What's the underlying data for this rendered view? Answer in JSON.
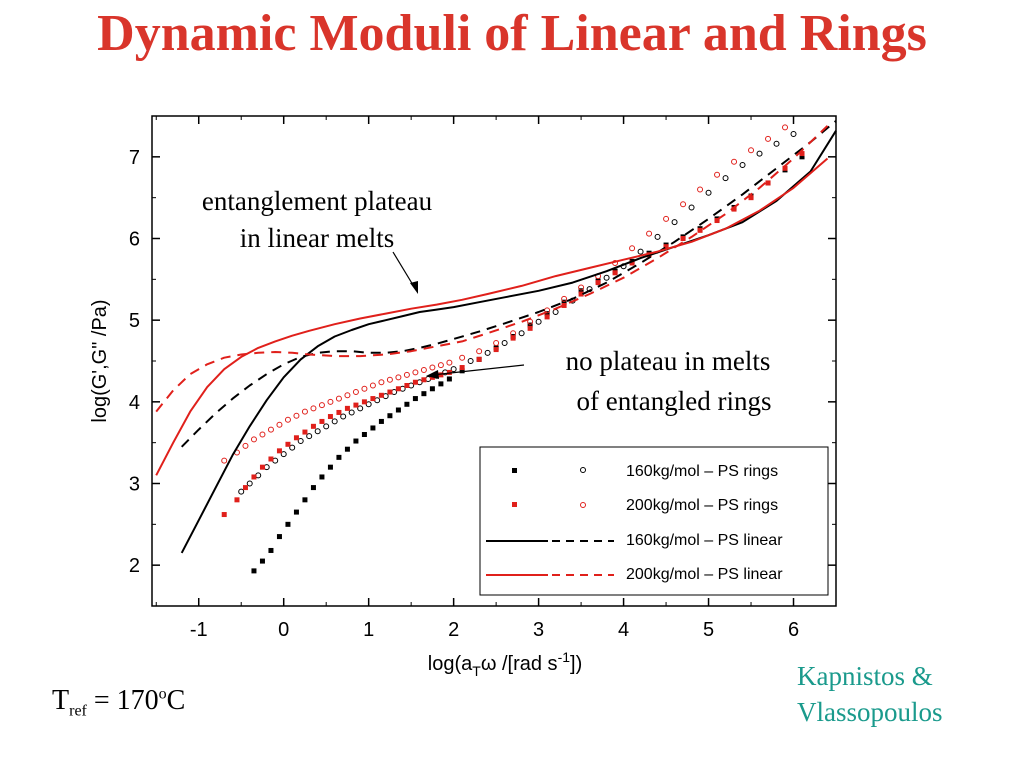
{
  "slide": {
    "title": "Dynamic Moduli of Linear and Rings",
    "tref": {
      "base": "T",
      "sub": "ref",
      "eq": " = 170",
      "sup": "o",
      "unit": "C"
    },
    "credit": [
      "Kapnistos &",
      "Vlassopoulos"
    ]
  },
  "annotations": {
    "plateau": [
      "entanglement plateau",
      "in linear melts"
    ],
    "noplateau": [
      "no plateau in melts",
      "of entangled rings"
    ]
  },
  "colors": {
    "title": "#d9352b",
    "credit": "#1a9a8c",
    "series160": "#000000",
    "series200": "#e0201b"
  },
  "chart_data": {
    "type": "scatter",
    "xlabel": "log(aTω /[rad s-1])",
    "ylabel": "log(G',G\" /Pa)",
    "xlim": [
      -1.55,
      6.5
    ],
    "ylim": [
      1.5,
      7.5
    ],
    "xticks": [
      "-1",
      "0",
      "1",
      "2",
      "3",
      "4",
      "5",
      "6"
    ],
    "yticks": [
      "2",
      "3",
      "4",
      "5",
      "6",
      "7"
    ],
    "grid": false,
    "legend": {
      "position": "bottom-right",
      "entries": [
        "160kg/mol – PS rings",
        "200kg/mol – PS rings",
        "160kg/mol – PS linear",
        "200kg/mol – PS linear"
      ]
    },
    "series": [
      {
        "name": "160kg/mol – PS rings",
        "modulus": "G'",
        "marker": "filled-square",
        "color": "#000000",
        "x": [
          -0.35,
          -0.25,
          -0.15,
          -0.05,
          0.05,
          0.15,
          0.25,
          0.35,
          0.45,
          0.55,
          0.65,
          0.75,
          0.85,
          0.95,
          1.05,
          1.15,
          1.25,
          1.35,
          1.45,
          1.55,
          1.65,
          1.75,
          1.85,
          1.95,
          2.1,
          2.3,
          2.5,
          2.7,
          2.9,
          3.1,
          3.3,
          3.5,
          3.7,
          3.9,
          4.1,
          4.3,
          4.5,
          4.7,
          4.9,
          5.1,
          5.3,
          5.5,
          5.7,
          5.9,
          6.1
        ],
        "y": [
          1.93,
          2.05,
          2.18,
          2.35,
          2.5,
          2.65,
          2.8,
          2.95,
          3.08,
          3.2,
          3.32,
          3.42,
          3.52,
          3.6,
          3.68,
          3.76,
          3.83,
          3.9,
          3.97,
          4.04,
          4.1,
          4.16,
          4.22,
          4.28,
          4.38,
          4.52,
          4.66,
          4.8,
          4.94,
          5.08,
          5.22,
          5.36,
          5.48,
          5.6,
          5.72,
          5.82,
          5.92,
          6.02,
          6.12,
          6.24,
          6.38,
          6.52,
          6.68,
          6.84,
          7.0
        ]
      },
      {
        "name": "160kg/mol – PS rings",
        "modulus": "G\"",
        "marker": "open-circle",
        "color": "#000000",
        "x": [
          -0.5,
          -0.4,
          -0.3,
          -0.2,
          -0.1,
          0,
          0.1,
          0.2,
          0.3,
          0.4,
          0.5,
          0.6,
          0.7,
          0.8,
          0.9,
          1,
          1.1,
          1.2,
          1.3,
          1.4,
          1.5,
          1.6,
          1.7,
          1.8,
          1.9,
          2.0,
          2.2,
          2.4,
          2.6,
          2.8,
          3.0,
          3.2,
          3.4,
          3.6,
          3.8,
          4.0,
          4.2,
          4.4,
          4.6,
          4.8,
          5.0,
          5.2,
          5.4,
          5.6,
          5.8,
          6.0
        ],
        "y": [
          2.9,
          3.0,
          3.1,
          3.2,
          3.28,
          3.36,
          3.44,
          3.52,
          3.58,
          3.64,
          3.7,
          3.76,
          3.82,
          3.87,
          3.92,
          3.97,
          4.02,
          4.07,
          4.12,
          4.16,
          4.2,
          4.24,
          4.28,
          4.32,
          4.36,
          4.4,
          4.5,
          4.6,
          4.72,
          4.84,
          4.98,
          5.1,
          5.24,
          5.38,
          5.52,
          5.66,
          5.84,
          6.02,
          6.2,
          6.38,
          6.56,
          6.74,
          6.9,
          7.04,
          7.16,
          7.28
        ]
      },
      {
        "name": "200kg/mol – PS rings",
        "modulus": "G'",
        "marker": "filled-square",
        "color": "#e0201b",
        "x": [
          -0.7,
          -0.55,
          -0.45,
          -0.35,
          -0.25,
          -0.15,
          -0.05,
          0.05,
          0.15,
          0.25,
          0.35,
          0.45,
          0.55,
          0.65,
          0.75,
          0.85,
          0.95,
          1.05,
          1.15,
          1.25,
          1.35,
          1.45,
          1.55,
          1.65,
          1.75,
          1.85,
          1.95,
          2.1,
          2.3,
          2.5,
          2.7,
          2.9,
          3.1,
          3.3,
          3.5,
          3.7,
          3.9,
          4.1,
          4.3,
          4.5,
          4.7,
          4.9,
          5.1,
          5.3,
          5.5,
          5.7,
          5.9,
          6.1
        ],
        "y": [
          2.62,
          2.8,
          2.95,
          3.08,
          3.2,
          3.3,
          3.4,
          3.48,
          3.56,
          3.63,
          3.7,
          3.76,
          3.82,
          3.87,
          3.92,
          3.96,
          4.0,
          4.04,
          4.08,
          4.12,
          4.16,
          4.2,
          4.24,
          4.27,
          4.3,
          4.33,
          4.36,
          4.42,
          4.52,
          4.64,
          4.78,
          4.9,
          5.04,
          5.18,
          5.32,
          5.46,
          5.58,
          5.7,
          5.8,
          5.9,
          6.0,
          6.1,
          6.22,
          6.36,
          6.5,
          6.68,
          6.86,
          7.04
        ]
      },
      {
        "name": "200kg/mol – PS rings",
        "modulus": "G\"",
        "marker": "open-circle",
        "color": "#e0201b",
        "x": [
          -0.7,
          -0.55,
          -0.45,
          -0.35,
          -0.25,
          -0.15,
          -0.05,
          0.05,
          0.15,
          0.25,
          0.35,
          0.45,
          0.55,
          0.65,
          0.75,
          0.85,
          0.95,
          1.05,
          1.15,
          1.25,
          1.35,
          1.45,
          1.55,
          1.65,
          1.75,
          1.85,
          1.95,
          2.1,
          2.3,
          2.5,
          2.7,
          2.9,
          3.1,
          3.3,
          3.5,
          3.7,
          3.9,
          4.1,
          4.3,
          4.5,
          4.7,
          4.9,
          5.1,
          5.3,
          5.5,
          5.7,
          5.9
        ],
        "y": [
          3.28,
          3.38,
          3.46,
          3.54,
          3.6,
          3.66,
          3.72,
          3.78,
          3.83,
          3.88,
          3.92,
          3.96,
          4.0,
          4.04,
          4.08,
          4.12,
          4.16,
          4.2,
          4.24,
          4.27,
          4.3,
          4.33,
          4.36,
          4.39,
          4.42,
          4.45,
          4.48,
          4.54,
          4.62,
          4.72,
          4.84,
          4.98,
          5.12,
          5.26,
          5.4,
          5.54,
          5.7,
          5.88,
          6.06,
          6.24,
          6.42,
          6.6,
          6.78,
          6.94,
          7.08,
          7.22,
          7.36
        ]
      },
      {
        "name": "160kg/mol – PS linear",
        "modulus": "G'",
        "line": "solid",
        "color": "#000000",
        "x": [
          -1.2,
          -1.0,
          -0.8,
          -0.6,
          -0.4,
          -0.2,
          0.0,
          0.2,
          0.4,
          0.6,
          0.8,
          1.0,
          1.2,
          1.4,
          1.6,
          1.8,
          2.0,
          2.3,
          2.6,
          3.0,
          3.4,
          3.8,
          4.2,
          4.6,
          5.0,
          5.4,
          5.8,
          6.2,
          6.5
        ],
        "y": [
          2.15,
          2.55,
          2.95,
          3.35,
          3.7,
          4.02,
          4.3,
          4.52,
          4.68,
          4.8,
          4.88,
          4.95,
          5.0,
          5.05,
          5.1,
          5.13,
          5.16,
          5.22,
          5.28,
          5.36,
          5.46,
          5.6,
          5.76,
          5.9,
          6.04,
          6.2,
          6.46,
          6.82,
          7.32
        ]
      },
      {
        "name": "160kg/mol – PS linear",
        "modulus": "G\"",
        "line": "dashed",
        "color": "#000000",
        "x": [
          -1.2,
          -1.0,
          -0.8,
          -0.6,
          -0.4,
          -0.2,
          0.0,
          0.2,
          0.4,
          0.6,
          0.8,
          1.0,
          1.2,
          1.4,
          1.6,
          1.8,
          2.0,
          2.3,
          2.6,
          3.0,
          3.4,
          3.8,
          4.2,
          4.6,
          5.0,
          5.4,
          5.8,
          6.2,
          6.5
        ],
        "y": [
          3.45,
          3.66,
          3.86,
          4.04,
          4.2,
          4.34,
          4.46,
          4.55,
          4.6,
          4.62,
          4.62,
          4.6,
          4.6,
          4.62,
          4.66,
          4.71,
          4.77,
          4.86,
          4.96,
          5.1,
          5.26,
          5.46,
          5.7,
          5.96,
          6.24,
          6.54,
          6.86,
          7.18,
          7.44
        ]
      },
      {
        "name": "200kg/mol – PS linear",
        "modulus": "G'",
        "line": "solid",
        "color": "#e0201b",
        "x": [
          -1.5,
          -1.3,
          -1.1,
          -0.9,
          -0.7,
          -0.5,
          -0.3,
          -0.1,
          0.1,
          0.3,
          0.6,
          0.9,
          1.2,
          1.5,
          1.8,
          2.1,
          2.4,
          2.8,
          3.2,
          3.6,
          4.0,
          4.4,
          4.8,
          5.2,
          5.6,
          6.0,
          6.4
        ],
        "y": [
          3.1,
          3.5,
          3.88,
          4.18,
          4.4,
          4.55,
          4.66,
          4.74,
          4.81,
          4.87,
          4.95,
          5.02,
          5.08,
          5.14,
          5.19,
          5.25,
          5.32,
          5.42,
          5.54,
          5.64,
          5.74,
          5.84,
          5.96,
          6.12,
          6.34,
          6.62,
          6.98
        ]
      },
      {
        "name": "200kg/mol – PS linear",
        "modulus": "G\"",
        "line": "dashed",
        "color": "#e0201b",
        "x": [
          -1.5,
          -1.3,
          -1.1,
          -0.9,
          -0.7,
          -0.5,
          -0.3,
          -0.1,
          0.1,
          0.3,
          0.6,
          0.9,
          1.2,
          1.5,
          1.8,
          2.1,
          2.4,
          2.8,
          3.2,
          3.6,
          4.0,
          4.4,
          4.8,
          5.2,
          5.6,
          6.0,
          6.4
        ],
        "y": [
          3.88,
          4.14,
          4.34,
          4.46,
          4.54,
          4.58,
          4.6,
          4.61,
          4.6,
          4.58,
          4.56,
          4.56,
          4.58,
          4.62,
          4.68,
          4.74,
          4.84,
          4.98,
          5.14,
          5.32,
          5.52,
          5.76,
          6.02,
          6.3,
          6.62,
          6.98,
          7.38
        ]
      }
    ]
  }
}
